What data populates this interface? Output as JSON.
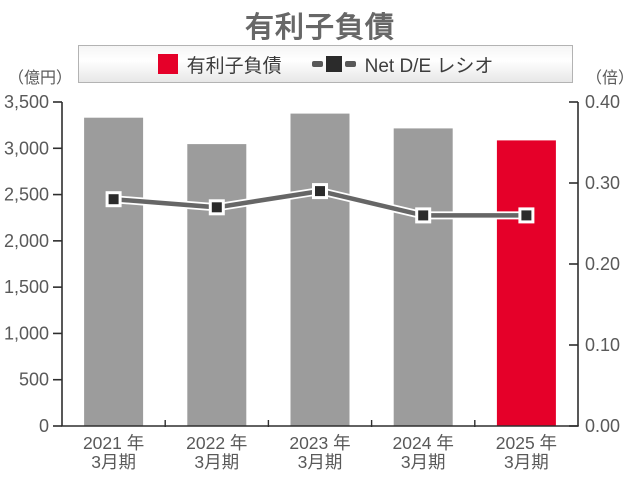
{
  "chart_data": {
    "type": "bar",
    "title": "有利子負債",
    "categories": [
      {
        "l1": "2021 年",
        "l2": "3月期"
      },
      {
        "l1": "2022 年",
        "l2": "3月期"
      },
      {
        "l1": "2023 年",
        "l2": "3月期"
      },
      {
        "l1": "2024 年",
        "l2": "3月期"
      },
      {
        "l1": "2025 年",
        "l2": "3月期"
      }
    ],
    "series": [
      {
        "name": "有利子負債",
        "type": "bar",
        "axis": "left",
        "values": [
          3330,
          3045,
          3375,
          3215,
          3085
        ],
        "colors": [
          "#9c9c9c",
          "#9c9c9c",
          "#9c9c9c",
          "#9c9c9c",
          "#e50029"
        ]
      },
      {
        "name": "Net D/E レシオ",
        "type": "line",
        "axis": "right",
        "values": [
          0.28,
          0.27,
          0.29,
          0.26,
          0.26
        ],
        "line_color": "#666666",
        "marker_color": "#2b2b2b"
      }
    ],
    "left_axis": {
      "unit": "（億円）",
      "min": 0,
      "max": 3500,
      "step": 500,
      "ticks": [
        "0",
        "500",
        "1,000",
        "1,500",
        "2,000",
        "2,500",
        "3,000",
        "3,500"
      ]
    },
    "right_axis": {
      "unit": "（倍）",
      "min": 0,
      "max": 0.4,
      "step": 0.1,
      "ticks": [
        "0.00",
        "0.10",
        "0.20",
        "0.30",
        "0.40"
      ]
    },
    "legend": {
      "position": "top",
      "items": [
        {
          "label": "有利子負債",
          "swatch": "#e50029",
          "kind": "bar"
        },
        {
          "label": "Net D/E レシオ",
          "swatch": "#2b2b2b",
          "kind": "line"
        }
      ]
    },
    "grid": "off",
    "colors": {
      "axis": "#2e2e2e",
      "tick_text": "#595959",
      "title_text": "#676767"
    }
  }
}
